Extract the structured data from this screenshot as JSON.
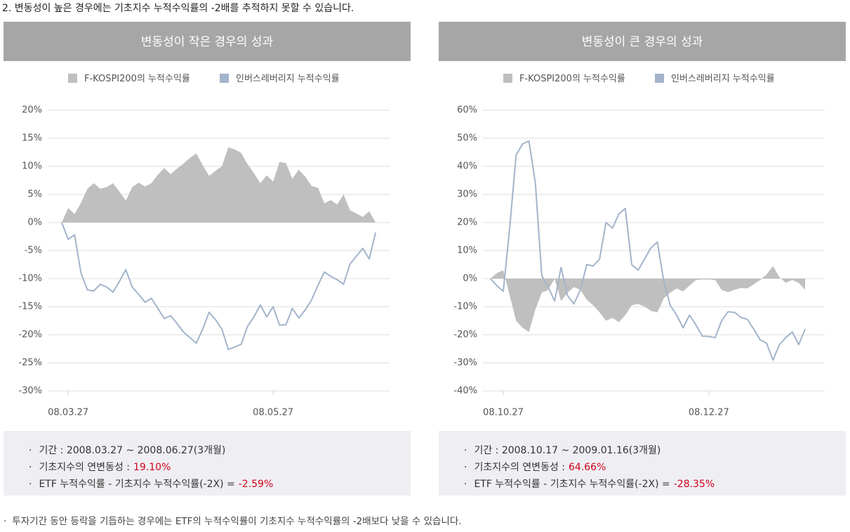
{
  "heading": "2. 변동성이 높은 경우에는 기초지수 누적수익률의 -2배를 추적하지 못할 수 있습니다.",
  "footnote": "투자기간 동안 등락을 기듭하는 경우에는 ETF의 누적수익률이 기초지수 누적수익률의 -2배보다 낮을 수 있습니다.",
  "chart_data": [
    {
      "type": "combo",
      "title": "변동성이 작은 경우의 성과",
      "categories": [
        null,
        "08.03.27",
        null,
        null,
        null,
        null,
        null,
        null,
        null,
        null,
        null,
        null,
        null,
        null,
        null,
        null,
        null,
        null,
        null,
        null,
        null,
        null,
        null,
        null,
        null,
        null,
        null,
        null,
        null,
        null,
        null,
        null,
        null,
        "08.05.27",
        null,
        null,
        null,
        null,
        null,
        null,
        null,
        null,
        null,
        null,
        null,
        null,
        null,
        null,
        null,
        null
      ],
      "series": [
        {
          "name": "F-KOSPI200의 누적수익률",
          "type": "area",
          "color": "#bfbfbf",
          "values": [
            0,
            2.6,
            1.5,
            3.5,
            6,
            7,
            6,
            6.3,
            7,
            5.5,
            3.9,
            6.3,
            7.1,
            6.4,
            7,
            8.5,
            9.7,
            8.6,
            9.6,
            10.5,
            11.5,
            12.3,
            10.2,
            8.3,
            9.2,
            10,
            13.4,
            13,
            12.4,
            10.4,
            8.8,
            7,
            8.4,
            7.3,
            10.8,
            10.6,
            7.8,
            9.4,
            8.2,
            6.5,
            6.2,
            3.4,
            4,
            3.2,
            5,
            2.2,
            1.6,
            1,
            2,
            0
          ]
        },
        {
          "name": "인버스레버리지 누적수익률",
          "type": "line",
          "color": "#a3b4ca",
          "values": [
            0,
            -3,
            -2.2,
            -9,
            -12,
            -12.2,
            -11,
            -11.5,
            -12.4,
            -10.5,
            -8.4,
            -11.5,
            -12.8,
            -14.2,
            -13.5,
            -15.3,
            -17.1,
            -16.6,
            -18,
            -19.5,
            -20.5,
            -21.5,
            -19,
            -16,
            -17.3,
            -19,
            -22.6,
            -22.2,
            -21.7,
            -18.5,
            -16.8,
            -14.7,
            -16.8,
            -15,
            -18.3,
            -18.2,
            -15.3,
            -17,
            -15.6,
            -13.8,
            -11.2,
            -8.8,
            -9.6,
            -10.2,
            -11,
            -7.4,
            -6,
            -4.6,
            -6.5,
            -1.8
          ]
        }
      ],
      "ylim": [
        -30,
        20
      ],
      "yticks": [
        {
          "value": -30,
          "label": "-30%"
        },
        {
          "value": -25,
          "label": "-25%"
        },
        {
          "value": -20,
          "label": "-20%"
        },
        {
          "value": -15,
          "label": "-15%"
        },
        {
          "value": -10,
          "label": "-10%"
        },
        {
          "value": -5,
          "label": "-5%"
        },
        {
          "value": 0,
          "label": "0%"
        },
        {
          "value": 5,
          "label": "5%"
        },
        {
          "value": 10,
          "label": "10%"
        },
        {
          "value": 15,
          "label": "15%"
        },
        {
          "value": 20,
          "label": "20%"
        }
      ],
      "grid": true,
      "notes": [
        {
          "text": "기간 : 2008.03.27 ~ 2008.06.27(3개월)"
        },
        {
          "text": "기초지수의 연변동성 :",
          "value": "19.10%"
        },
        {
          "text": "ETF 누적수익률 - 기초지수 누적수익률(-2X) =",
          "value": "-2.59%"
        }
      ]
    },
    {
      "type": "combo",
      "title": "변동성이 큰 경우의 성과",
      "categories": [
        null,
        null,
        "08.10.27",
        null,
        null,
        null,
        null,
        null,
        null,
        null,
        null,
        null,
        null,
        null,
        null,
        null,
        null,
        null,
        null,
        null,
        null,
        null,
        null,
        null,
        null,
        null,
        null,
        null,
        null,
        null,
        null,
        null,
        null,
        null,
        "08.12.27",
        null,
        null,
        null,
        null,
        null,
        null,
        null,
        null,
        null,
        null,
        null,
        null,
        null,
        null,
        null
      ],
      "series": [
        {
          "name": "F-KOSPI200의 누적수익률",
          "type": "area",
          "color": "#bfbfbf",
          "values": [
            0,
            2,
            3,
            -6,
            -15,
            -17.5,
            -19,
            -11,
            -5,
            -4,
            0,
            -8,
            -5,
            -3,
            -4,
            -7.5,
            -9.5,
            -12,
            -15,
            -14,
            -15.5,
            -13,
            -9.5,
            -9,
            -10,
            -11.5,
            -12,
            -7,
            -5,
            -3.5,
            -4.5,
            -2.5,
            -0.5,
            -0.3,
            -0.3,
            -0.5,
            -4,
            -4.8,
            -4,
            -3.3,
            -3.5,
            -2,
            -0.5,
            1.5,
            4.5,
            0.5,
            -1.5,
            -0.5,
            -1.5,
            -4
          ]
        },
        {
          "name": "인버스레버리지 누적수익률",
          "type": "line",
          "color": "#a3b4ca",
          "values": [
            0,
            -2.5,
            -4.5,
            18,
            44,
            48,
            49,
            34,
            1,
            -3,
            -8,
            4,
            -6,
            -9,
            -4,
            5,
            4.5,
            7,
            20,
            18,
            23,
            25,
            5,
            3,
            7,
            11,
            13,
            -1,
            -9.5,
            -13,
            -17.5,
            -13,
            -16.5,
            -20.5,
            -20.6,
            -21,
            -15,
            -11.8,
            -12,
            -13.8,
            -14.5,
            -18,
            -21.8,
            -23,
            -29,
            -23.5,
            -21,
            -19,
            -23.5,
            -18
          ]
        }
      ],
      "ylim": [
        -40,
        60
      ],
      "yticks": [
        {
          "value": -40,
          "label": "-40%"
        },
        {
          "value": -30,
          "label": "-30%"
        },
        {
          "value": -20,
          "label": "-20%"
        },
        {
          "value": -10,
          "label": "-10%"
        },
        {
          "value": 0,
          "label": "0%"
        },
        {
          "value": 10,
          "label": "10%"
        },
        {
          "value": 20,
          "label": "20%"
        },
        {
          "value": 30,
          "label": "30%"
        },
        {
          "value": 40,
          "label": "40%"
        },
        {
          "value": 50,
          "label": "50%"
        },
        {
          "value": 60,
          "label": "60%"
        }
      ],
      "grid": true,
      "notes": [
        {
          "text": "기간 : 2008.10.17 ~ 2009.01.16(3개월)"
        },
        {
          "text": "기초지수의 연변동성 :",
          "value": "64.66%"
        },
        {
          "text": "ETF 누적수익률 - 기초지수 누적수익률(-2X) =",
          "value": "-28.35%"
        }
      ]
    }
  ]
}
